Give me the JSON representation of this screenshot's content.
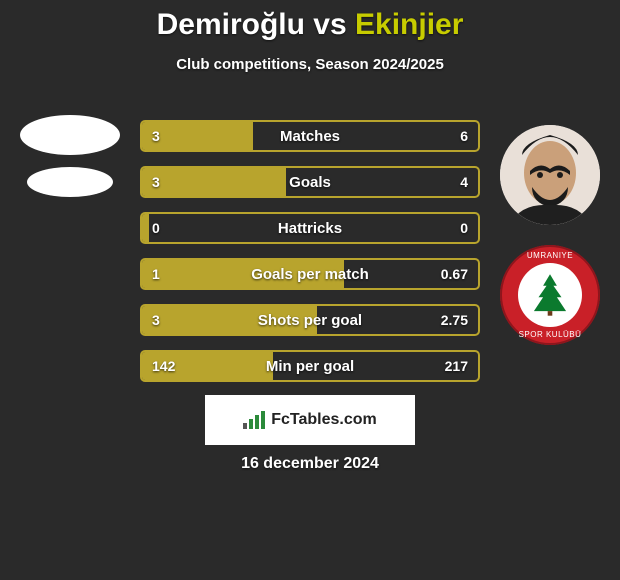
{
  "title": {
    "player1": "Demiroğlu",
    "vs": "vs",
    "player2": "Ekinjier"
  },
  "subtitle": "Club competitions, Season 2024/2025",
  "colors": {
    "bar_fill": "#b8a42d",
    "bar_border": "#b8a42d",
    "background": "#2a2a2a",
    "player2_accent": "#c7cc00",
    "badge_bg": "#c92028"
  },
  "bars": [
    {
      "label": "Matches",
      "left": "3",
      "right": "6",
      "fill_pct": 33
    },
    {
      "label": "Goals",
      "left": "3",
      "right": "4",
      "fill_pct": 43
    },
    {
      "label": "Hattricks",
      "left": "0",
      "right": "0",
      "fill_pct": 2
    },
    {
      "label": "Goals per match",
      "left": "1",
      "right": "0.67",
      "fill_pct": 60
    },
    {
      "label": "Shots per goal",
      "left": "3",
      "right": "2.75",
      "fill_pct": 52
    },
    {
      "label": "Min per goal",
      "left": "142",
      "right": "217",
      "fill_pct": 39
    }
  ],
  "badge": {
    "top_text": "UMRANIYE",
    "bottom_text": "SPOR KULÜBÜ"
  },
  "footer_brand": "FcTables.com",
  "date": "16 december 2024"
}
